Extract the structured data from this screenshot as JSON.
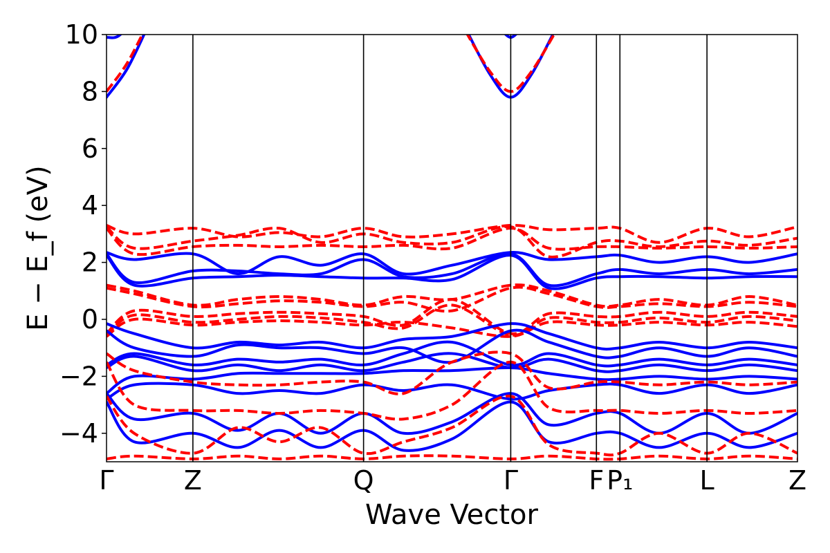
{
  "chart_data": {
    "type": "line",
    "title": "",
    "xlabel": "Wave Vector",
    "ylabel": "E − E_f (eV)",
    "ylim": [
      -5,
      10
    ],
    "yticks": [
      -4,
      -2,
      0,
      2,
      4,
      6,
      8,
      10
    ],
    "ytick_labels": [
      "−4",
      "−2",
      "0",
      "2",
      "4",
      "6",
      "8",
      "10"
    ],
    "xlim": [
      0,
      1
    ],
    "high_symmetry_points": [
      {
        "label": "Γ",
        "x": 0.0
      },
      {
        "label": "Z",
        "x": 0.125
      },
      {
        "label": "Q",
        "x": 0.372
      },
      {
        "label": "Γ",
        "x": 0.585
      },
      {
        "label": "F",
        "x": 0.709
      },
      {
        "label": "P₁",
        "x": 0.743
      },
      {
        "label": "L",
        "x": 0.869
      },
      {
        "label": "Z",
        "x": 1.0
      }
    ],
    "grid": false,
    "legend": "none",
    "colors": {
      "solid": "#0000ff",
      "dashed": "#ff0000",
      "vline": "#000000"
    },
    "series": [
      {
        "style": "dashed",
        "color": "#ff0000",
        "x": [
          0,
          0.04,
          0.125,
          0.19,
          0.25,
          0.31,
          0.372,
          0.43,
          0.5,
          0.585,
          0.64,
          0.709,
          0.743,
          0.8,
          0.869,
          0.93,
          1.0
        ],
        "y": [
          3.3,
          3.0,
          3.2,
          2.9,
          3.05,
          2.9,
          3.2,
          2.9,
          3.0,
          3.3,
          3.15,
          3.2,
          3.2,
          2.7,
          3.2,
          2.9,
          3.25
        ]
      },
      {
        "style": "dashed",
        "color": "#ff0000",
        "x": [
          0,
          0.04,
          0.125,
          0.19,
          0.25,
          0.31,
          0.372,
          0.43,
          0.5,
          0.585,
          0.64,
          0.709,
          0.743,
          0.8,
          0.869,
          0.93,
          1.0
        ],
        "y": [
          3.25,
          2.5,
          2.75,
          2.95,
          3.2,
          2.7,
          3.0,
          2.7,
          2.7,
          3.25,
          2.2,
          2.7,
          2.75,
          2.55,
          2.75,
          2.6,
          2.85
        ]
      },
      {
        "style": "dashed",
        "color": "#ff0000",
        "x": [
          0,
          0.04,
          0.125,
          0.19,
          0.25,
          0.31,
          0.372,
          0.43,
          0.5,
          0.585,
          0.64,
          0.709,
          0.743,
          0.8,
          0.869,
          0.93,
          1.0
        ],
        "y": [
          3.2,
          2.3,
          2.55,
          2.6,
          2.55,
          2.6,
          2.55,
          2.6,
          2.5,
          3.2,
          2.5,
          2.55,
          2.55,
          2.5,
          2.55,
          2.5,
          2.55
        ]
      },
      {
        "style": "solid",
        "color": "#0000ff",
        "x": [
          0,
          0.04,
          0.125,
          0.19,
          0.25,
          0.31,
          0.372,
          0.43,
          0.5,
          0.585,
          0.64,
          0.709,
          0.743,
          0.8,
          0.869,
          0.93,
          1.0
        ],
        "y": [
          2.35,
          2.1,
          2.3,
          1.6,
          2.2,
          1.9,
          2.3,
          1.6,
          1.9,
          2.35,
          2.1,
          2.2,
          2.25,
          2.0,
          2.2,
          2.0,
          2.3
        ]
      },
      {
        "style": "solid",
        "color": "#0000ff",
        "x": [
          0,
          0.04,
          0.125,
          0.19,
          0.25,
          0.31,
          0.372,
          0.43,
          0.5,
          0.585,
          0.64,
          0.709,
          0.743,
          0.8,
          0.869,
          0.93,
          1.0
        ],
        "y": [
          2.3,
          1.3,
          1.7,
          1.7,
          1.6,
          1.6,
          2.1,
          1.5,
          1.6,
          2.3,
          1.2,
          1.6,
          1.75,
          1.6,
          1.75,
          1.6,
          1.75
        ]
      },
      {
        "style": "solid",
        "color": "#0000ff",
        "x": [
          0,
          0.04,
          0.125,
          0.19,
          0.25,
          0.31,
          0.372,
          0.43,
          0.5,
          0.585,
          0.64,
          0.709,
          0.743,
          0.8,
          0.869,
          0.93,
          1.0
        ],
        "y": [
          2.25,
          1.2,
          1.45,
          1.5,
          1.55,
          1.5,
          1.45,
          1.45,
          1.4,
          2.25,
          1.1,
          1.45,
          1.5,
          1.5,
          1.45,
          1.5,
          1.5
        ]
      },
      {
        "style": "dashed",
        "color": "#ff0000",
        "x": [
          0,
          0.04,
          0.125,
          0.19,
          0.25,
          0.31,
          0.372,
          0.43,
          0.5,
          0.585,
          0.64,
          0.709,
          0.743,
          0.8,
          0.869,
          0.93,
          1.0
        ],
        "y": [
          1.2,
          1.0,
          0.5,
          0.7,
          0.8,
          0.7,
          0.5,
          0.8,
          0.7,
          1.2,
          1.0,
          0.5,
          0.5,
          0.7,
          0.5,
          0.8,
          0.5
        ]
      },
      {
        "style": "dashed",
        "color": "#ff0000",
        "x": [
          0,
          0.04,
          0.125,
          0.19,
          0.25,
          0.31,
          0.372,
          0.43,
          0.5,
          0.585,
          0.64,
          0.709,
          0.743,
          0.8,
          0.869,
          0.93,
          1.0
        ],
        "y": [
          1.1,
          0.9,
          0.45,
          0.55,
          0.65,
          0.6,
          0.45,
          0.6,
          0.3,
          1.1,
          0.9,
          0.45,
          0.45,
          0.55,
          0.45,
          0.6,
          0.45
        ]
      },
      {
        "style": "dashed",
        "color": "#ff0000",
        "x": [
          0,
          0.04,
          0.125,
          0.19,
          0.25,
          0.31,
          0.372,
          0.43,
          0.5,
          0.585,
          0.64,
          0.709,
          0.743,
          0.8,
          0.869,
          0.93,
          1.0
        ],
        "y": [
          -0.5,
          0.3,
          0.1,
          0.2,
          0.25,
          0.2,
          0.1,
          -0.2,
          0.7,
          -0.5,
          0.2,
          0.1,
          0.1,
          0.25,
          0.1,
          0.25,
          0.1
        ]
      },
      {
        "style": "dashed",
        "color": "#ff0000",
        "x": [
          0,
          0.04,
          0.125,
          0.19,
          0.25,
          0.31,
          0.372,
          0.43,
          0.5,
          0.585,
          0.64,
          0.709,
          0.743,
          0.8,
          0.869,
          0.93,
          1.0
        ],
        "y": [
          -0.55,
          0.15,
          -0.1,
          0.0,
          0.1,
          0.05,
          -0.1,
          -0.3,
          0.5,
          -0.55,
          0.05,
          -0.1,
          -0.1,
          0.05,
          -0.1,
          0.1,
          -0.05
        ]
      },
      {
        "style": "dashed",
        "color": "#ff0000",
        "x": [
          0,
          0.04,
          0.125,
          0.19,
          0.25,
          0.31,
          0.372,
          0.43,
          0.5,
          0.585,
          0.64,
          0.709,
          0.743,
          0.8,
          0.869,
          0.93,
          1.0
        ],
        "y": [
          -0.6,
          0.0,
          -0.2,
          -0.1,
          -0.05,
          -0.1,
          -0.2,
          -0.1,
          -0.3,
          -0.6,
          -0.1,
          -0.2,
          -0.2,
          -0.1,
          -0.2,
          -0.1,
          -0.25
        ]
      },
      {
        "style": "solid",
        "color": "#0000ff",
        "x": [
          0,
          0.04,
          0.125,
          0.19,
          0.25,
          0.31,
          0.372,
          0.43,
          0.5,
          0.585,
          0.64,
          0.709,
          0.743,
          0.8,
          0.869,
          0.93,
          1.0
        ],
        "y": [
          -0.15,
          -0.5,
          -1.0,
          -0.8,
          -0.9,
          -0.8,
          -1.0,
          -0.7,
          -0.6,
          -0.15,
          -0.5,
          -1.0,
          -1.0,
          -0.8,
          -1.0,
          -0.8,
          -1.0
        ]
      },
      {
        "style": "solid",
        "color": "#0000ff",
        "x": [
          0,
          0.04,
          0.125,
          0.19,
          0.25,
          0.31,
          0.372,
          0.43,
          0.5,
          0.585,
          0.64,
          0.709,
          0.743,
          0.8,
          0.869,
          0.93,
          1.0
        ],
        "y": [
          -0.4,
          -1.0,
          -1.3,
          -0.9,
          -1.0,
          -1.0,
          -1.2,
          -1.0,
          -1.5,
          -0.4,
          -0.8,
          -1.3,
          -1.3,
          -1.0,
          -1.3,
          -1.0,
          -1.3
        ]
      },
      {
        "style": "solid",
        "color": "#0000ff",
        "x": [
          0,
          0.04,
          0.125,
          0.19,
          0.25,
          0.31,
          0.372,
          0.43,
          0.5,
          0.585,
          0.64,
          0.709,
          0.743,
          0.8,
          0.869,
          0.93,
          1.0
        ],
        "y": [
          -1.6,
          -1.2,
          -1.6,
          -1.4,
          -1.5,
          -1.4,
          -1.6,
          -1.2,
          -0.8,
          -1.6,
          -1.2,
          -1.6,
          -1.6,
          -1.4,
          -1.6,
          -1.4,
          -1.6
        ]
      },
      {
        "style": "solid",
        "color": "#0000ff",
        "x": [
          0,
          0.04,
          0.125,
          0.19,
          0.25,
          0.31,
          0.372,
          0.43,
          0.5,
          0.585,
          0.64,
          0.709,
          0.743,
          0.8,
          0.869,
          0.93,
          1.0
        ],
        "y": [
          -1.7,
          -1.3,
          -1.8,
          -1.6,
          -1.8,
          -1.6,
          -1.8,
          -1.5,
          -1.2,
          -1.7,
          -1.4,
          -1.8,
          -1.8,
          -1.6,
          -1.8,
          -1.6,
          -1.8
        ]
      },
      {
        "style": "solid",
        "color": "#0000ff",
        "x": [
          0,
          0.04,
          0.125,
          0.19,
          0.25,
          0.31,
          0.372,
          0.43,
          0.5,
          0.585,
          0.64,
          0.709,
          0.743,
          0.8,
          0.869,
          0.93,
          1.0
        ],
        "y": [
          -2.6,
          -2.0,
          -2.1,
          -1.9,
          -1.9,
          -1.9,
          -1.9,
          -1.8,
          -1.8,
          -1.7,
          -1.9,
          -2.1,
          -2.1,
          -2.0,
          -2.1,
          -2.0,
          -2.1
        ]
      },
      {
        "style": "solid",
        "color": "#0000ff",
        "x": [
          0,
          0.04,
          0.125,
          0.19,
          0.25,
          0.31,
          0.372,
          0.43,
          0.5,
          0.585,
          0.64,
          0.709,
          0.743,
          0.8,
          0.869,
          0.93,
          1.0
        ],
        "y": [
          -2.8,
          -2.3,
          -2.3,
          -2.6,
          -2.5,
          -2.6,
          -2.3,
          -2.5,
          -2.3,
          -2.8,
          -2.5,
          -2.3,
          -2.3,
          -2.6,
          -2.3,
          -2.6,
          -2.3
        ]
      },
      {
        "style": "solid",
        "color": "#0000ff",
        "x": [
          0,
          0.04,
          0.125,
          0.19,
          0.25,
          0.31,
          0.372,
          0.43,
          0.5,
          0.585,
          0.64,
          0.709,
          0.743,
          0.8,
          0.869,
          0.93,
          1.0
        ],
        "y": [
          -2.6,
          -3.5,
          -3.3,
          -3.9,
          -3.3,
          -4.0,
          -3.3,
          -4.0,
          -3.6,
          -2.6,
          -3.7,
          -3.3,
          -3.3,
          -4.0,
          -3.3,
          -4.0,
          -3.3
        ]
      },
      {
        "style": "solid",
        "color": "#0000ff",
        "x": [
          0,
          0.04,
          0.125,
          0.19,
          0.25,
          0.31,
          0.372,
          0.43,
          0.5,
          0.585,
          0.64,
          0.709,
          0.743,
          0.8,
          0.869,
          0.93,
          1.0
        ],
        "y": [
          -2.9,
          -4.3,
          -4.0,
          -4.5,
          -3.9,
          -4.5,
          -3.9,
          -4.6,
          -4.2,
          -2.9,
          -4.3,
          -4.0,
          -4.0,
          -4.5,
          -4.0,
          -4.5,
          -4.0
        ]
      },
      {
        "style": "dashed",
        "color": "#ff0000",
        "x": [
          0,
          0.04,
          0.125,
          0.19,
          0.25,
          0.31,
          0.372,
          0.43,
          0.5,
          0.585,
          0.64,
          0.709,
          0.743,
          0.8,
          0.869,
          0.93,
          1.0
        ],
        "y": [
          -1.2,
          -1.8,
          -2.2,
          -2.3,
          -2.3,
          -2.2,
          -2.2,
          -2.6,
          -1.5,
          -1.2,
          -2.4,
          -2.2,
          -2.2,
          -2.3,
          -2.2,
          -2.3,
          -2.2
        ]
      },
      {
        "style": "dashed",
        "color": "#ff0000",
        "x": [
          0,
          0.04,
          0.125,
          0.19,
          0.25,
          0.31,
          0.372,
          0.43,
          0.5,
          0.585,
          0.64,
          0.709,
          0.743,
          0.8,
          0.869,
          0.93,
          1.0
        ],
        "y": [
          -1.5,
          -3.0,
          -3.2,
          -3.2,
          -3.3,
          -3.2,
          -3.3,
          -3.5,
          -3.0,
          -1.5,
          -3.1,
          -3.2,
          -3.2,
          -3.3,
          -3.2,
          -3.3,
          -3.2
        ]
      },
      {
        "style": "dashed",
        "color": "#ff0000",
        "x": [
          0,
          0.04,
          0.125,
          0.19,
          0.25,
          0.31,
          0.372,
          0.43,
          0.5,
          0.585,
          0.64,
          0.709,
          0.743,
          0.8,
          0.869,
          0.93,
          1.0
        ],
        "y": [
          -2.7,
          -4.0,
          -4.7,
          -3.8,
          -4.3,
          -3.8,
          -4.7,
          -4.3,
          -3.8,
          -2.7,
          -4.4,
          -4.7,
          -4.7,
          -4.0,
          -4.7,
          -4.0,
          -4.7
        ]
      },
      {
        "style": "dashed",
        "color": "#ff0000",
        "x": [
          0,
          0.04,
          0.125,
          0.19,
          0.25,
          0.31,
          0.372,
          0.43,
          0.5,
          0.585,
          0.64,
          0.709,
          0.743,
          0.8,
          0.869,
          0.93,
          1.0
        ],
        "y": [
          -4.9,
          -4.8,
          -4.9,
          -4.8,
          -4.9,
          -4.8,
          -4.9,
          -4.8,
          -4.8,
          -4.9,
          -4.8,
          -4.9,
          -4.9,
          -4.8,
          -4.9,
          -4.8,
          -4.9
        ]
      },
      {
        "style": "solid",
        "color": "#0000ff",
        "x": [
          0,
          0.02,
          0.05
        ],
        "y": [
          9.9,
          10.0,
          11.0
        ]
      },
      {
        "style": "solid",
        "color": "#0000ff",
        "x": [
          0,
          0.03,
          0.06
        ],
        "y": [
          7.8,
          8.8,
          10.3
        ]
      },
      {
        "style": "dashed",
        "color": "#ff0000",
        "x": [
          0,
          0.03,
          0.06
        ],
        "y": [
          8.0,
          9.0,
          10.4
        ]
      },
      {
        "style": "solid",
        "color": "#0000ff",
        "x": [
          0.52,
          0.555,
          0.585,
          0.615,
          0.65
        ],
        "y": [
          10.2,
          8.6,
          7.8,
          8.6,
          10.2
        ]
      },
      {
        "style": "dashed",
        "color": "#ff0000",
        "x": [
          0.52,
          0.555,
          0.585,
          0.615,
          0.65
        ],
        "y": [
          10.1,
          8.7,
          8.0,
          8.7,
          10.1
        ]
      },
      {
        "style": "solid",
        "color": "#0000ff",
        "x": [
          0.57,
          0.585,
          0.6
        ],
        "y": [
          10.2,
          9.9,
          10.2
        ]
      }
    ]
  }
}
